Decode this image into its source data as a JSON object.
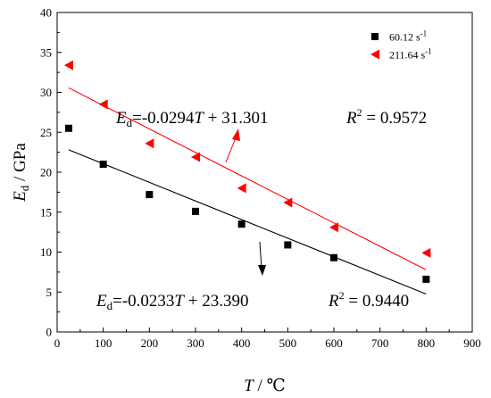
{
  "chart_data": {
    "type": "scatter",
    "xlim": [
      0,
      900
    ],
    "ylim": [
      0,
      40
    ],
    "x_ticks": [
      0,
      100,
      200,
      300,
      400,
      500,
      600,
      700,
      800,
      900
    ],
    "y_ticks": [
      0,
      5,
      10,
      15,
      20,
      25,
      30,
      35,
      40
    ],
    "xlabel": {
      "var": "T",
      "unit": " / ℃"
    },
    "ylabel": {
      "var": "E",
      "sub": "d",
      "unit": " / GPa"
    },
    "legend_position": "top-right",
    "series": [
      {
        "name": "60.12 s",
        "name_sup": "-1",
        "marker": "square",
        "color": "#000000",
        "x": [
          25,
          100,
          200,
          300,
          400,
          500,
          600,
          800
        ],
        "y": [
          25.5,
          21.0,
          17.2,
          15.1,
          13.5,
          10.9,
          9.3,
          6.6
        ],
        "fit": {
          "slope": -0.0233,
          "intercept": 23.39,
          "x_range": [
            25,
            800
          ],
          "equation": {
            "lhs_var": "E",
            "lhs_sub": "d",
            "rhs_before": "=-0.0233",
            "rhs_var": "T",
            "rhs_after": " + 23.390"
          },
          "r2": {
            "symbol": "R",
            "sup": "2",
            "value": " = 0.9440"
          }
        }
      },
      {
        "name": "211.64 s",
        "name_sup": "-1",
        "marker": "triangle-left",
        "color": "#ff0000",
        "x": [
          25,
          100,
          200,
          300,
          400,
          500,
          600,
          800
        ],
        "y": [
          33.4,
          28.5,
          23.6,
          21.9,
          18.0,
          16.2,
          13.1,
          9.9
        ],
        "fit": {
          "slope": -0.0294,
          "intercept": 31.301,
          "x_range": [
            25,
            800
          ],
          "equation": {
            "lhs_var": "E",
            "lhs_sub": "d",
            "rhs_before": "=-0.0294",
            "rhs_var": "T",
            "rhs_after": " + 31.301"
          },
          "r2": {
            "symbol": "R",
            "sup": "2",
            "value": " = 0.9572"
          }
        }
      }
    ]
  }
}
